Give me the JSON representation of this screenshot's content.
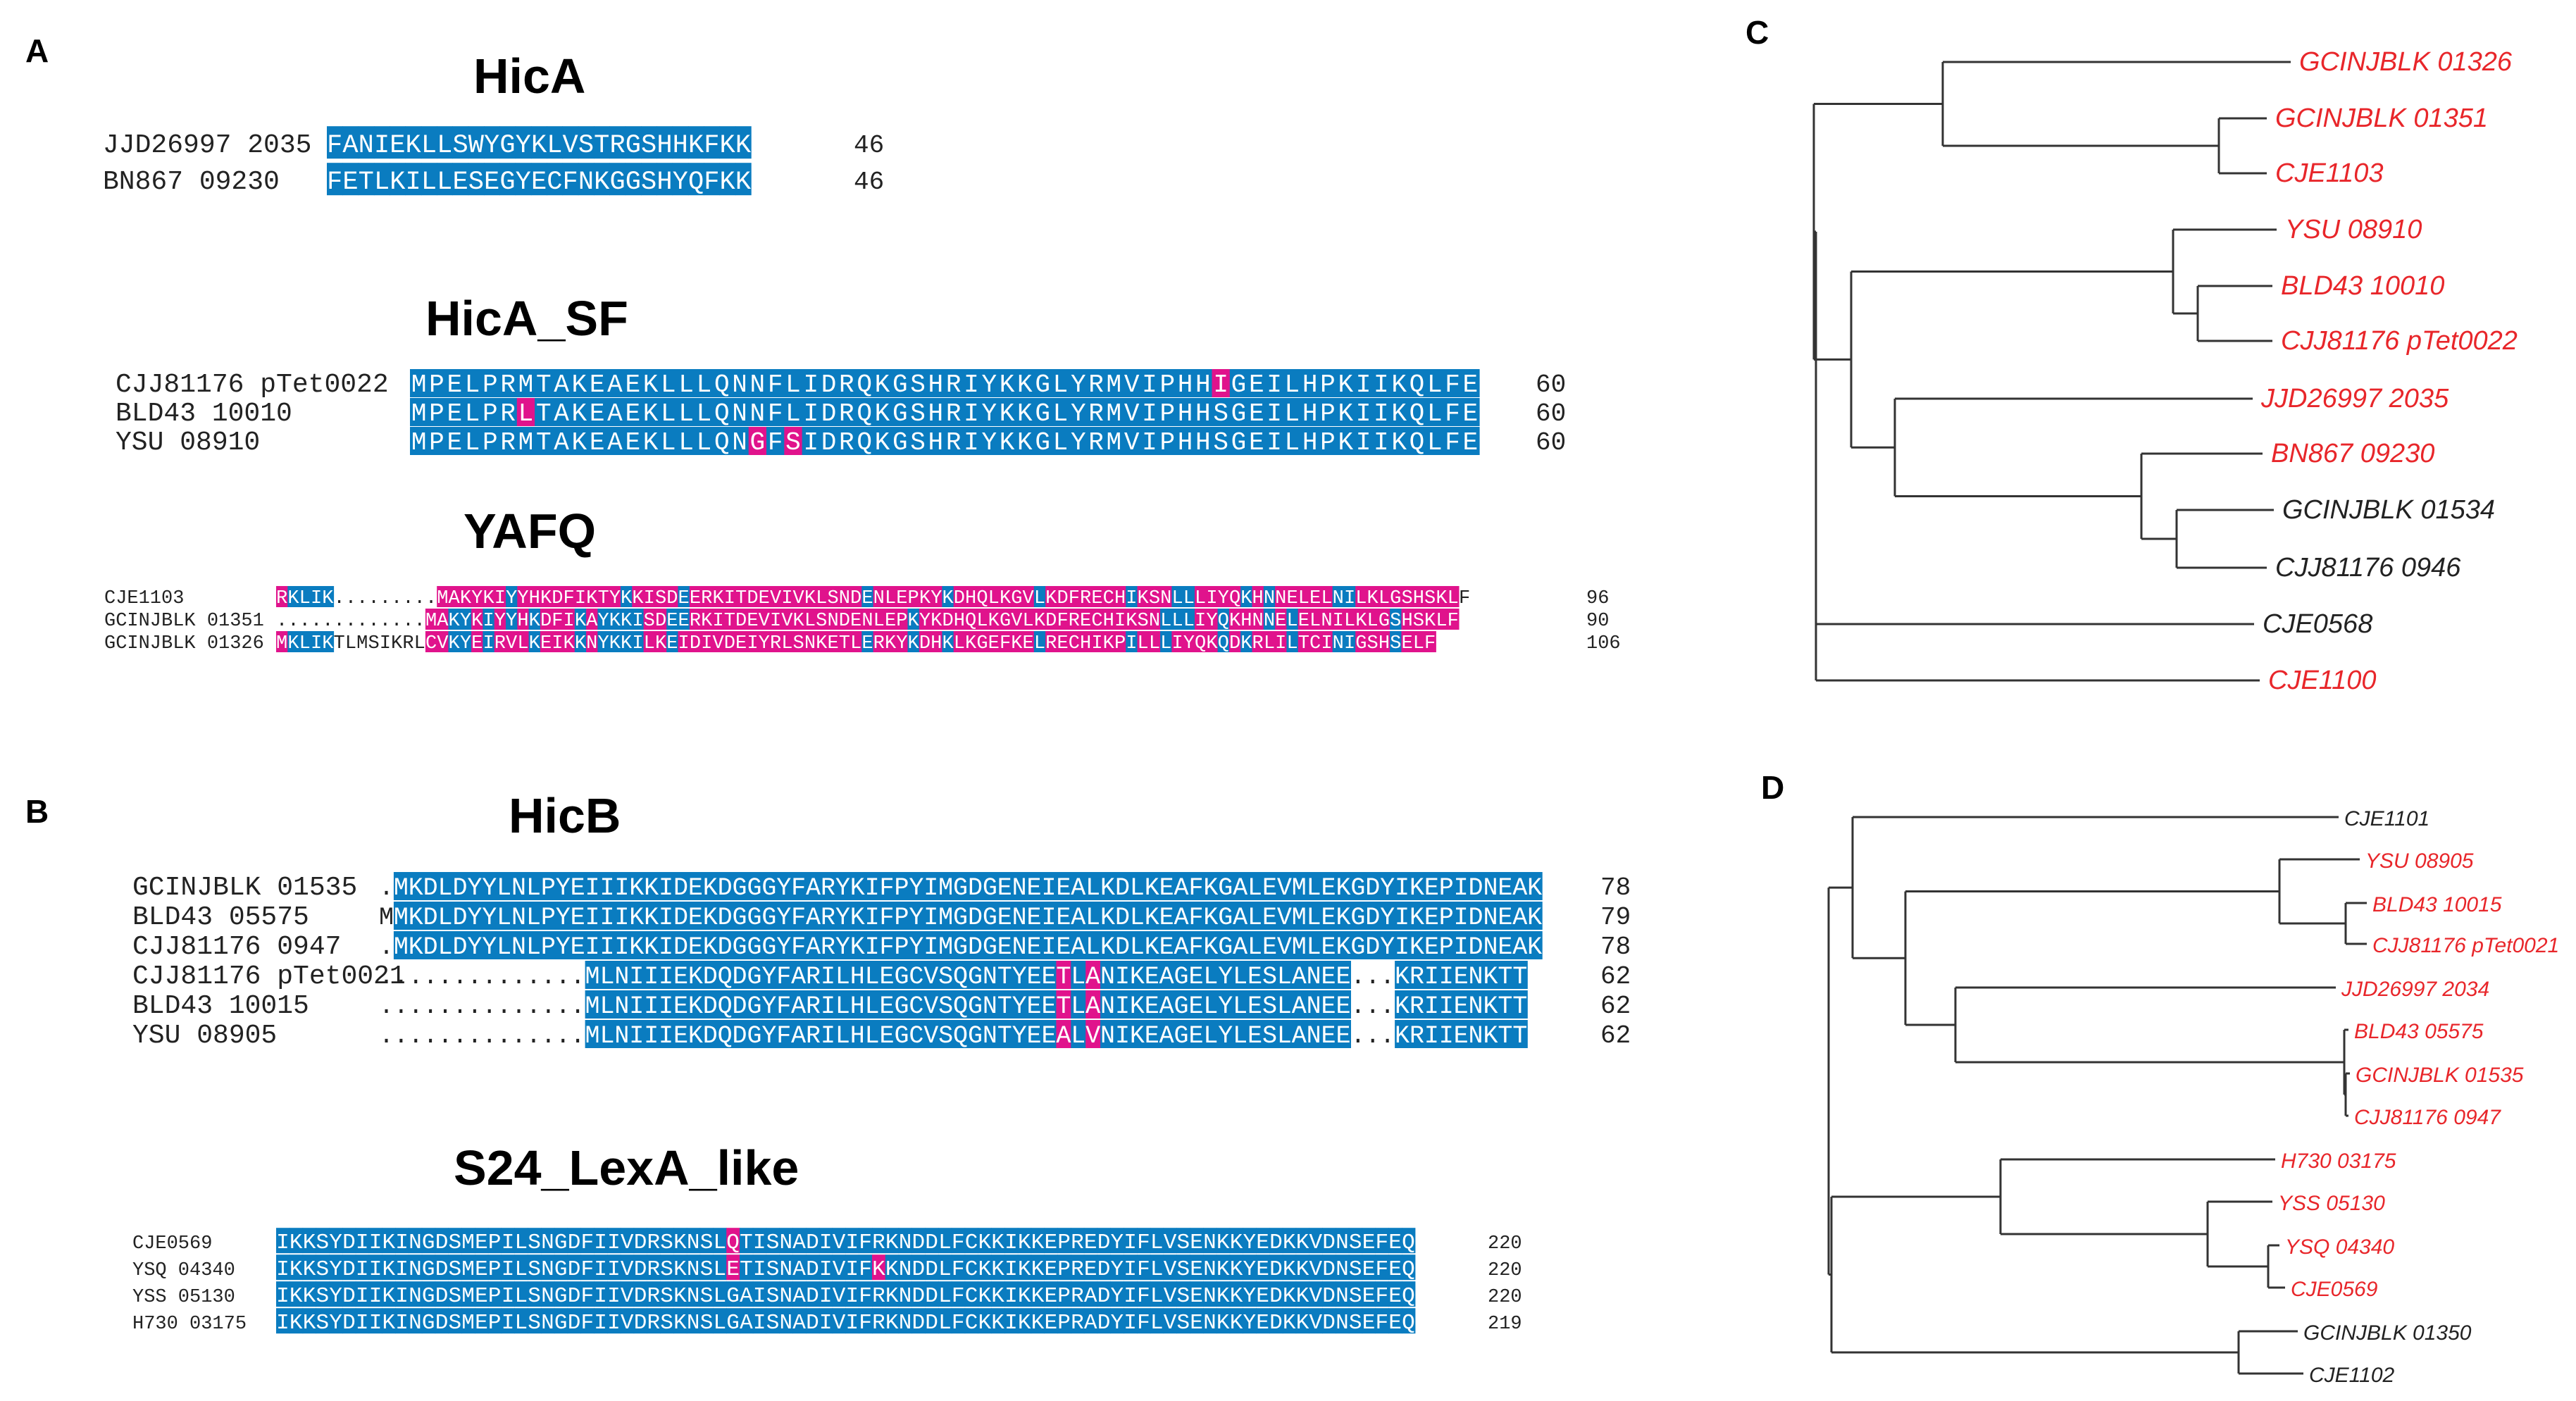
{
  "colors": {
    "identical": "#0a7cc0",
    "variant": "#e0138c",
    "red_leaf": "#e8262a",
    "black_leaf": "#222222"
  },
  "panels": {
    "a": "A",
    "b": "B",
    "c": "C",
    "d": "D"
  },
  "alignments": {
    "hica": {
      "title": "HicA",
      "rows": [
        {
          "name": "JJD26997 2035",
          "seq": "FANIEKLLSWYGYKLVSTRGSHHKFKK",
          "end": "46"
        },
        {
          "name": "BN867 09230",
          "seq": "FETLKILLESEGYECFNKGGSHYQFKK",
          "end": "46"
        }
      ]
    },
    "hica_sf": {
      "title": "HicA_SF",
      "rows": [
        {
          "name": "CJJ81176 pTet0022",
          "seq": "MPELPRMTAKEAEKLLLQNNFLIDRQKGSHRIYKKGLYRMVIPHHIGEILHPKIIKQLFE",
          "end": "60"
        },
        {
          "name": "BLD43 10010",
          "seq": "MPELPRLTAKEAEKLLLQNNFLIDRQKGSHRIYKKGLYRMVIPHHSGEILHPKIIKQLFE",
          "end": "60"
        },
        {
          "name": "YSU 08910",
          "seq": "MPELPRMTAKEAEKLLLQNGFSIDRQKGSHRIYKKGLYRMVIPHHSGEILHPKIIKQLFE",
          "end": "60"
        }
      ]
    },
    "yafq": {
      "title": "YAFQ",
      "rows": [
        {
          "name": "CJE1103",
          "seq": "RKLIK.........MAKYKIYYHKDFIKTYKKISDEERKITDEVIVKLSNDENLEPKYKDHQLKGVLKDFRECHIKSNLLLIYQKHNNELELNILKLGSHSKLF",
          "end": "96"
        },
        {
          "name": "GCINJBLK 01351",
          "seq": ".............MAKYKIYYHKDFIKAYKKISDEERKITDEVIVKLSNDENLEPKYKDHQLKGVLKDFRECHIKSNLLLIYQKHNNELELNILKLGSHSKLF",
          "end": "90"
        },
        {
          "name": "GCINJBLK 01326",
          "seq": "MKLIKTLMSIKRLCVKYEIRVLKEIKKNYKKILKEIDIVDEIYRLSNKETLERKYKDHKLKGEFKELRECHIKPILLLIYQKQDKRLILTCINIGSHSELF",
          "end": "106"
        }
      ]
    },
    "hicb": {
      "title": "HicB",
      "rows": [
        {
          "name": "GCINJBLK 01535",
          "seq": ".MKDLDYYLNLPYEIIIKKIDEKDGGGYFARYKIFPYIMGDGENEIEALKDLKEAFKGALEVMLEKGDYIKEPIDNEAK",
          "end": "78"
        },
        {
          "name": "BLD43 05575",
          "seq": "MMKDLDYYLNLPYEIIIKKIDEKDGGGYFARYKIFPYIMGDGENEIEALKDLKEAFKGALEVMLEKGDYIKEPIDNEAK",
          "end": "79"
        },
        {
          "name": "CJJ81176 0947",
          "seq": ".MKDLDYYLNLPYEIIIKKIDEKDGGGYFARYKIFPYIMGDGENEIEALKDLKEAFKGALEVMLEKGDYIKEPIDNEAK",
          "end": "78"
        },
        {
          "name": "CJJ81176 pTet0021",
          "seq": "..............MLNIIIEKDQDGYFARILHLEGCVSQGNTYEETLANIKEAGELYLESLANEE...KRIIENKTT",
          "end": "62"
        },
        {
          "name": "BLD43 10015",
          "seq": "..............MLNIIIEKDQDGYFARILHLEGCVSQGNTYEETLANIKEAGELYLESLANEE...KRIIENKTT",
          "end": "62"
        },
        {
          "name": "YSU 08905",
          "seq": "..............MLNIIIEKDQDGYFARILHLEGCVSQGNTYEEALVNIKEAGELYLESLANEE...KRIIENKTT",
          "end": "62"
        }
      ]
    },
    "lexa": {
      "title": "S24_LexA_like",
      "rows": [
        {
          "name": "CJE0569",
          "seq": "IKKSYDIIKINGDSMEPILSNGDFIIVDRSKNSLQTISNADIVIFRKNDDLFCKKIKKEPREDYIFLVSENKKYEDKKVDNSEFEQ",
          "end": "220"
        },
        {
          "name": "YSQ 04340",
          "seq": "IKKSYDIIKINGDSMEPILSNGDFIIVDRSKNSLETISNADIVIFKKNDDLFCKKIKKEPREDYIFLVSENKKYEDKKVDNSEFEQ",
          "end": "220"
        },
        {
          "name": "YSS 05130",
          "seq": "IKKSYDIIKINGDSMEPILSNGDFIIVDRSKNSLGAISNADIVIFRKNDDLFCKKIKKEPRADYIFLVSENKKYEDKKVDNSEFEQ",
          "end": "220"
        },
        {
          "name": "H730 03175",
          "seq": "IKKSYDIIKINGDSMEPILSNGDFIIVDRSKNSLGAISNADIVIFRKNDDLFCKKIKKEPRADYIFLVSENKKYEDKKVDNSEFEQ",
          "end": "219"
        }
      ]
    }
  },
  "trees": {
    "c": {
      "leaves": [
        {
          "label": "GCINJBLK 01326",
          "color": "red"
        },
        {
          "label": "GCINJBLK 01351",
          "color": "red"
        },
        {
          "label": "CJE1103",
          "color": "red"
        },
        {
          "label": "YSU 08910",
          "color": "red"
        },
        {
          "label": "BLD43 10010",
          "color": "red"
        },
        {
          "label": "CJJ81176 pTet0022",
          "color": "red"
        },
        {
          "label": "JJD26997 2035",
          "color": "red"
        },
        {
          "label": "BN867 09230",
          "color": "red"
        },
        {
          "label": "GCINJBLK 01534",
          "color": "black"
        },
        {
          "label": "CJJ81176 0946",
          "color": "black"
        },
        {
          "label": "CJE0568",
          "color": "black"
        },
        {
          "label": "CJE1100",
          "color": "red"
        }
      ]
    },
    "d": {
      "leaves": [
        {
          "label": "CJE1101",
          "color": "black"
        },
        {
          "label": "YSU 08905",
          "color": "red"
        },
        {
          "label": "BLD43 10015",
          "color": "red"
        },
        {
          "label": "CJJ81176 pTet0021",
          "color": "red"
        },
        {
          "label": "JJD26997 2034",
          "color": "red"
        },
        {
          "label": "BLD43 05575",
          "color": "red"
        },
        {
          "label": "GCINJBLK 01535",
          "color": "red"
        },
        {
          "label": "CJJ81176 0947",
          "color": "red"
        },
        {
          "label": "H730 03175",
          "color": "red"
        },
        {
          "label": "YSS 05130",
          "color": "red"
        },
        {
          "label": "YSQ 04340",
          "color": "red"
        },
        {
          "label": "CJE0569",
          "color": "red"
        },
        {
          "label": "GCINJBLK 01350",
          "color": "black"
        },
        {
          "label": "CJE1102",
          "color": "black"
        }
      ]
    }
  }
}
